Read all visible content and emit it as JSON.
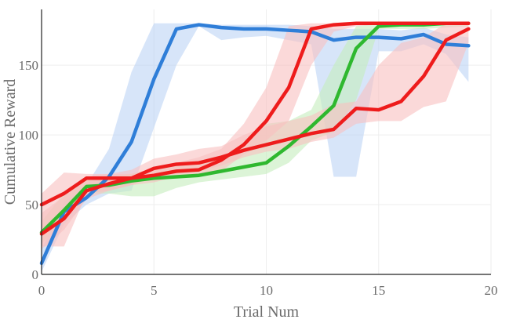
{
  "chart_data": {
    "type": "line",
    "title": "",
    "xlabel": "Trial Num",
    "ylabel": "Cumulative Reward",
    "xlim": [
      0,
      20
    ],
    "ylim": [
      0,
      190
    ],
    "xticks": [
      0,
      5,
      10,
      15,
      20
    ],
    "yticks": [
      0,
      50,
      100,
      150
    ],
    "grid": true,
    "x": [
      0,
      1,
      2,
      3,
      4,
      5,
      6,
      7,
      8,
      9,
      10,
      11,
      12,
      13,
      14,
      15,
      16,
      17,
      18,
      19
    ],
    "series": [
      {
        "color": "#2f7ed8",
        "band_color": "#bcd4f5",
        "values": [
          8,
          45,
          55,
          70,
          95,
          140,
          176,
          179,
          177,
          176,
          176,
          175,
          174,
          168,
          170,
          170,
          169,
          172,
          165,
          164
        ],
        "upper": [
          18,
          52,
          64,
          90,
          145,
          180,
          180,
          180,
          179,
          179,
          179,
          179,
          178,
          176,
          176,
          176,
          175,
          177,
          172,
          170
        ],
        "lower": [
          2,
          36,
          50,
          58,
          60,
          105,
          150,
          178,
          168,
          170,
          171,
          168,
          165,
          70,
          70,
          160,
          160,
          165,
          158,
          138
        ]
      },
      {
        "color": "#2fb82f",
        "band_color": "#c4ecbc",
        "values": [
          30,
          46,
          63,
          64,
          67,
          69,
          70,
          71,
          74,
          77,
          80,
          92,
          106,
          121,
          162,
          178,
          179,
          179,
          180,
          180
        ],
        "upper": [
          38,
          58,
          70,
          70,
          72,
          76,
          78,
          79,
          84,
          90,
          108,
          110,
          118,
          150,
          178,
          180,
          180,
          180,
          180,
          180
        ],
        "lower": [
          22,
          40,
          58,
          58,
          56,
          56,
          62,
          66,
          68,
          70,
          72,
          80,
          96,
          102,
          125,
          176,
          176,
          176,
          177,
          178
        ]
      },
      {
        "color": "#ee1c1c",
        "band_color": "#f8c0c0",
        "values": [
          50,
          58,
          69,
          69,
          69,
          76,
          79,
          80,
          84,
          89,
          93,
          97,
          101,
          104,
          119,
          118,
          124,
          142,
          168,
          176
        ],
        "upper": [
          58,
          73,
          72,
          72,
          75,
          83,
          86,
          90,
          92,
          100,
          106,
          110,
          114,
          122,
          124,
          150,
          166,
          170,
          180,
          180
        ],
        "lower": [
          20,
          20,
          58,
          60,
          64,
          70,
          72,
          74,
          78,
          84,
          88,
          90,
          95,
          98,
          108,
          110,
          110,
          120,
          124,
          166
        ]
      },
      {
        "color": "#ee1c1c",
        "band_color": "#f8c0c0",
        "values": [
          29,
          40,
          60,
          65,
          69,
          71,
          74,
          75,
          82,
          93,
          110,
          134,
          176,
          179,
          180,
          180,
          180,
          180,
          180,
          180
        ],
        "upper": [
          44,
          56,
          70,
          72,
          72,
          76,
          80,
          84,
          90,
          108,
          134,
          178,
          180,
          180,
          180,
          180,
          180,
          180,
          180,
          180
        ],
        "lower": [
          18,
          32,
          54,
          60,
          64,
          66,
          70,
          72,
          74,
          86,
          96,
          110,
          150,
          174,
          178,
          179,
          179,
          179,
          179,
          179
        ]
      }
    ]
  }
}
